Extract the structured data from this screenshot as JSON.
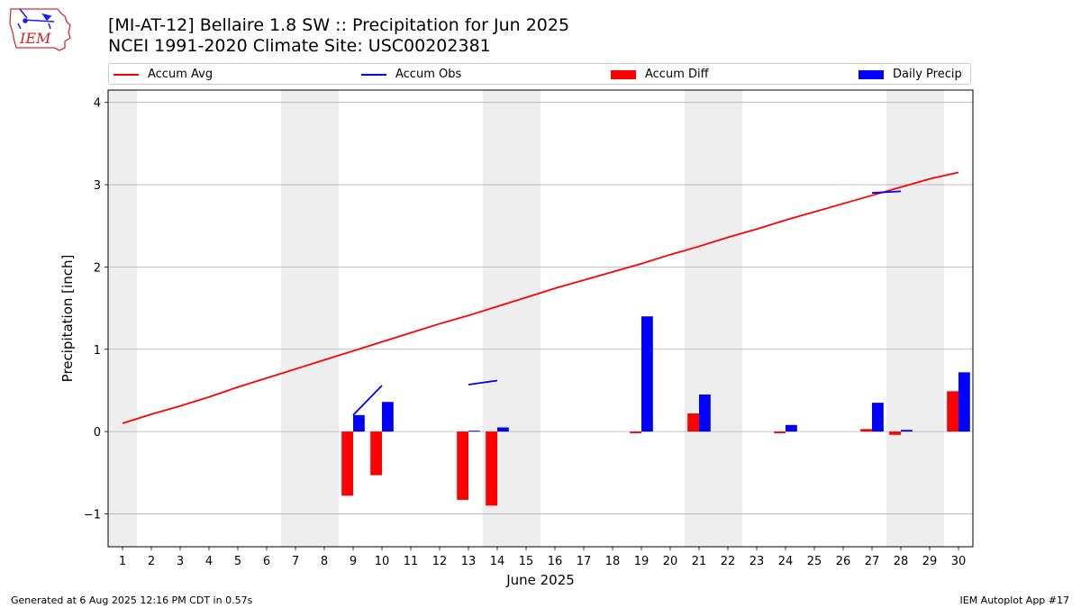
{
  "title_line1": "[MI-AT-12] Bellaire 1.8 SW :: Precipitation for Jun 2025",
  "title_line2": "NCEI 1991-2020 Climate Site: USC00202381",
  "logo_text": "IEM",
  "footer_left": "Generated at 6 Aug 2025 12:16 PM CDT in 0.57s",
  "footer_right": "IEM Autoplot App #17",
  "colors": {
    "avg": "#ff0000",
    "obs": "#0000ff",
    "diff": "#ff0000",
    "daily": "#0000ff",
    "weekend": "#eeeeee",
    "grid": "#b0b0b0"
  },
  "legend": [
    {
      "label": "Accum Avg",
      "kind": "line",
      "color": "#ff0000"
    },
    {
      "label": "Accum Obs",
      "kind": "line",
      "color": "#0000ff"
    },
    {
      "label": "Accum Diff",
      "kind": "bar",
      "color": "#ff0000"
    },
    {
      "label": "Daily Precip",
      "kind": "bar",
      "color": "#0000ff"
    }
  ],
  "chart_data": {
    "type": "bar",
    "title": "[MI-AT-12] Bellaire 1.8 SW :: Precipitation for Jun 2025",
    "subtitle": "NCEI 1991-2020 Climate Site: USC00202381",
    "xlabel": "June 2025",
    "ylabel": "Precipitation [inch]",
    "xlim": [
      0.5,
      30.5
    ],
    "ylim": [
      -1.4,
      4.15
    ],
    "yticks": [
      -1,
      0,
      1,
      2,
      3,
      4
    ],
    "ytick_labels": [
      "−1",
      "0",
      "1",
      "2",
      "3",
      "4"
    ],
    "x": [
      1,
      2,
      3,
      4,
      5,
      6,
      7,
      8,
      9,
      10,
      11,
      12,
      13,
      14,
      15,
      16,
      17,
      18,
      19,
      20,
      21,
      22,
      23,
      24,
      25,
      26,
      27,
      28,
      29,
      30
    ],
    "grid": "horizontal",
    "legend_position": "top",
    "weekend_bands": [
      [
        0.5,
        1.5
      ],
      [
        6.5,
        8.5
      ],
      [
        13.5,
        15.5
      ],
      [
        20.5,
        22.5
      ],
      [
        27.5,
        29.5
      ]
    ],
    "series": [
      {
        "name": "Accum Avg",
        "type": "line",
        "values": [
          0.1,
          0.21,
          0.31,
          0.42,
          0.54,
          0.65,
          0.76,
          0.87,
          0.98,
          1.09,
          1.2,
          1.31,
          1.41,
          1.52,
          1.63,
          1.74,
          1.84,
          1.94,
          2.04,
          2.15,
          2.25,
          2.36,
          2.46,
          2.57,
          2.67,
          2.77,
          2.87,
          2.97,
          3.07,
          3.15
        ]
      },
      {
        "name": "Accum Obs",
        "type": "line",
        "segments": [
          {
            "x": [
              9,
              10
            ],
            "values": [
              0.2,
              0.56
            ]
          },
          {
            "x": [
              13,
              14
            ],
            "values": [
              0.57,
              0.62
            ]
          },
          {
            "x": [
              27,
              28
            ],
            "values": [
              2.9,
              2.92
            ]
          }
        ]
      },
      {
        "name": "Accum Diff",
        "type": "bar",
        "values": [
          null,
          null,
          null,
          null,
          null,
          null,
          null,
          null,
          -0.78,
          -0.53,
          null,
          null,
          -0.83,
          -0.9,
          null,
          null,
          null,
          null,
          -0.02,
          null,
          0.22,
          null,
          null,
          -0.02,
          null,
          null,
          0.03,
          -0.04,
          null,
          0.49
        ]
      },
      {
        "name": "Daily Precip",
        "type": "bar",
        "values": [
          0,
          0,
          0,
          0,
          0,
          0,
          0,
          0,
          0.2,
          0.36,
          0,
          0,
          0.01,
          0.05,
          0,
          0,
          0,
          0,
          1.4,
          0,
          0.45,
          0,
          0,
          0.08,
          0,
          0,
          0.35,
          0.02,
          0,
          0.72
        ]
      }
    ]
  }
}
